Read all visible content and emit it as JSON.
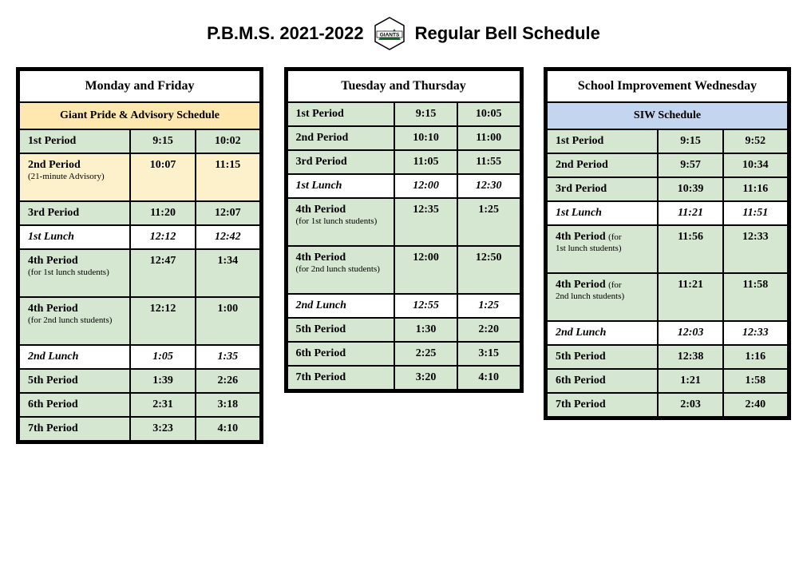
{
  "header": {
    "left": "P.B.M.S.  2021-2022",
    "right": "Regular Bell Schedule",
    "logo_text": "GIANTS",
    "logo_green": "#1a6b3a",
    "logo_border": "#000000"
  },
  "colors": {
    "green_row": "#d5e6d1",
    "yellow_row": "#fdf1cc",
    "yellow_header": "#ffe7b0",
    "blue_header": "#c3d5ef",
    "border": "#000000",
    "white": "#ffffff"
  },
  "tables": {
    "mon_fri": {
      "title": "Monday and Friday",
      "subhead": "Giant Pride & Advisory Schedule",
      "rows": [
        {
          "style": "green",
          "label": "1st Period",
          "start": "9:15",
          "end": "10:02"
        },
        {
          "style": "yellow",
          "label": "2nd Period",
          "note": "(21-minute Advisory)",
          "start": "10:07",
          "end": "11:15",
          "tall": true
        },
        {
          "style": "green",
          "label": "3rd Period",
          "start": "11:20",
          "end": "12:07"
        },
        {
          "style": "white",
          "label": "1st Lunch",
          "start": "12:12",
          "end": "12:42"
        },
        {
          "style": "green",
          "label": "4th Period",
          "note": "(for 1st lunch students)",
          "start": "12:47",
          "end": "1:34",
          "tall": true
        },
        {
          "style": "green",
          "label": "4th Period",
          "note": "(for 2nd lunch students)",
          "start": "12:12",
          "end": "1:00",
          "tall": true
        },
        {
          "style": "white",
          "label": "2nd Lunch",
          "start": "1:05",
          "end": "1:35"
        },
        {
          "style": "green",
          "label": "5th Period",
          "start": "1:39",
          "end": "2:26"
        },
        {
          "style": "green",
          "label": "6th Period",
          "start": "2:31",
          "end": "3:18"
        },
        {
          "style": "green",
          "label": "7th Period",
          "start": "3:23",
          "end": "4:10"
        }
      ]
    },
    "tue_thu": {
      "title": "Tuesday and Thursday",
      "rows": [
        {
          "style": "green",
          "label": "1st Period",
          "start": "9:15",
          "end": "10:05"
        },
        {
          "style": "green",
          "label": "2nd Period",
          "start": "10:10",
          "end": "11:00"
        },
        {
          "style": "green",
          "label": "3rd Period",
          "start": "11:05",
          "end": "11:55"
        },
        {
          "style": "white",
          "label": "1st Lunch",
          "start": "12:00",
          "end": "12:30"
        },
        {
          "style": "green",
          "label": "4th Period",
          "note": "(for 1st lunch students)",
          "start": "12:35",
          "end": "1:25",
          "tall": true
        },
        {
          "style": "green",
          "label": "4th Period",
          "note": "(for 2nd lunch students)",
          "start": "12:00",
          "end": "12:50",
          "tall": true
        },
        {
          "style": "white",
          "label": "2nd Lunch",
          "start": "12:55",
          "end": "1:25"
        },
        {
          "style": "green",
          "label": "5th Period",
          "start": "1:30",
          "end": "2:20"
        },
        {
          "style": "green",
          "label": "6th Period",
          "start": "2:25",
          "end": "3:15"
        },
        {
          "style": "green",
          "label": "7th Period",
          "start": "3:20",
          "end": "4:10"
        }
      ]
    },
    "wed": {
      "title": "School Improvement Wednesday",
      "subhead": "SIW Schedule",
      "rows": [
        {
          "style": "green",
          "label": "1st Period",
          "start": "9:15",
          "end": "9:52"
        },
        {
          "style": "green",
          "label": "2nd Period",
          "start": "9:57",
          "end": "10:34"
        },
        {
          "style": "green",
          "label": "3rd Period",
          "start": "10:39",
          "end": "11:16"
        },
        {
          "style": "white",
          "label": "1st Lunch",
          "start": "11:21",
          "end": "11:51"
        },
        {
          "style": "green",
          "label": "4th Period",
          "note_inline": "(for 1st lunch students)",
          "start": "11:56",
          "end": "12:33",
          "tall": true
        },
        {
          "style": "green",
          "label": "4th Period",
          "note_inline": "(for 2nd lunch students)",
          "start": "11:21",
          "end": "11:58",
          "tall": true
        },
        {
          "style": "white",
          "label": "2nd Lunch",
          "start": "12:03",
          "end": "12:33"
        },
        {
          "style": "green",
          "label": "5th Period",
          "start": "12:38",
          "end": "1:16"
        },
        {
          "style": "green",
          "label": "6th Period",
          "start": "1:21",
          "end": "1:58"
        },
        {
          "style": "green",
          "label": "7th Period",
          "start": "2:03",
          "end": "2:40"
        }
      ]
    }
  }
}
